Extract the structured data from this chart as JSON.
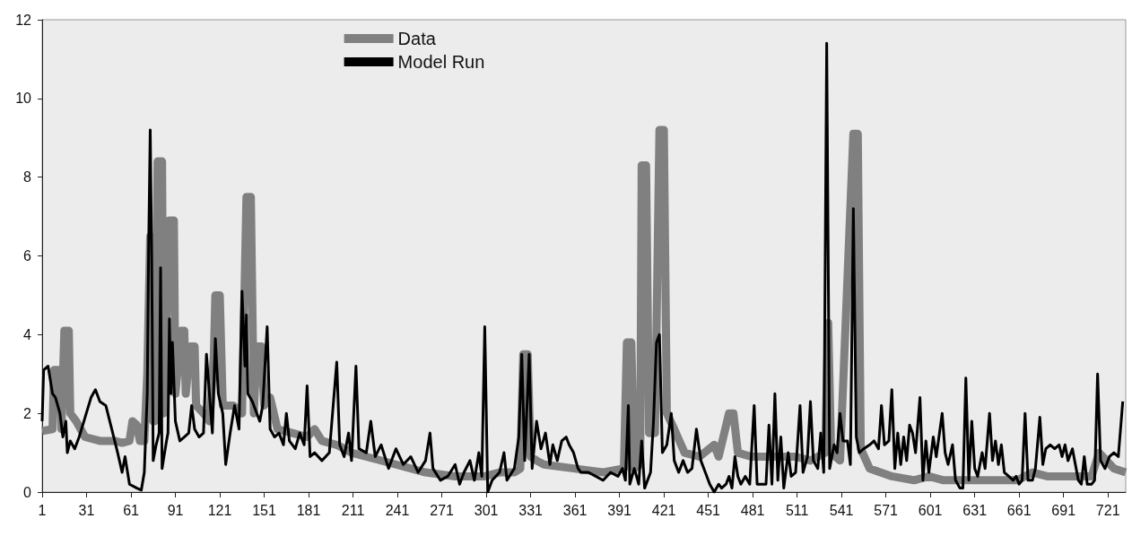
{
  "chart_data": {
    "type": "line",
    "legend": "top left",
    "marker": "none",
    "xlim": [
      1,
      733
    ],
    "xticks": [
      1,
      31,
      61,
      91,
      121,
      151,
      181,
      211,
      241,
      271,
      301,
      331,
      361,
      391,
      421,
      451,
      481,
      511,
      541,
      571,
      601,
      631,
      661,
      691,
      721
    ],
    "ylim": [
      0,
      12
    ],
    "yticks": [
      0,
      2,
      4,
      6,
      8,
      10,
      12
    ],
    "series": [
      {
        "name": "Data",
        "color": "#808080",
        "x": [
          1,
          8,
          9,
          13,
          14,
          16,
          19,
          20,
          24,
          30,
          40,
          50,
          55,
          60,
          62,
          65,
          67,
          70,
          72,
          74,
          76,
          77,
          79,
          82,
          83,
          86,
          87,
          90,
          91,
          95,
          97,
          98,
          101,
          104,
          105,
          110,
          114,
          117,
          118,
          121,
          123,
          130,
          136,
          139,
          142,
          144,
          146,
          149,
          151,
          155,
          160,
          170,
          180,
          185,
          190,
          200,
          210,
          220,
          240,
          260,
          280,
          300,
          310,
          320,
          324,
          326,
          329,
          331,
          335,
          340,
          360,
          380,
          394,
          396,
          399,
          401,
          405,
          406,
          409,
          411,
          415,
          418,
          421,
          423,
          428,
          435,
          445,
          455,
          458,
          465,
          468,
          471,
          480,
          500,
          510,
          520,
          530,
          532,
          534,
          540,
          549,
          552,
          554,
          560,
          575,
          590,
          600,
          610,
          640,
          660,
          670,
          680,
          700,
          710,
          715,
          720,
          725,
          733
        ],
        "values": [
          1.55,
          1.6,
          3.1,
          3.1,
          1.6,
          4.1,
          4.1,
          2.0,
          1.8,
          1.4,
          1.3,
          1.3,
          1.25,
          1.3,
          1.8,
          1.7,
          1.3,
          1.3,
          3.0,
          6.5,
          1.8,
          1.8,
          8.4,
          8.4,
          2.0,
          5.8,
          6.9,
          6.9,
          2.5,
          4.1,
          4.1,
          2.5,
          3.7,
          3.7,
          2.2,
          2.0,
          1.8,
          3.5,
          5.0,
          5.0,
          2.2,
          2.2,
          2.0,
          7.5,
          7.5,
          2.0,
          3.7,
          3.7,
          2.2,
          2.4,
          1.6,
          1.5,
          1.4,
          1.6,
          1.3,
          1.2,
          1.0,
          0.9,
          0.7,
          0.5,
          0.4,
          0.4,
          0.5,
          0.5,
          0.6,
          3.5,
          3.5,
          0.9,
          0.8,
          0.7,
          0.6,
          0.5,
          0.6,
          3.8,
          3.8,
          0.6,
          0.7,
          8.3,
          8.3,
          1.5,
          1.5,
          9.2,
          9.2,
          2.0,
          1.6,
          1.0,
          0.9,
          1.2,
          0.9,
          2.0,
          2.0,
          1.0,
          0.9,
          0.9,
          0.9,
          0.8,
          1.0,
          4.3,
          1.0,
          0.8,
          9.1,
          9.1,
          1.1,
          0.6,
          0.4,
          0.3,
          0.4,
          0.3,
          0.3,
          0.3,
          0.5,
          0.4,
          0.4,
          0.4,
          1.0,
          0.8,
          0.6,
          0.5
        ]
      },
      {
        "name": "Model Run",
        "color": "#000000",
        "x": [
          1,
          2,
          5,
          8,
          10,
          13,
          15,
          17,
          18,
          20,
          23,
          26,
          30,
          34,
          37,
          40,
          44,
          48,
          52,
          55,
          57,
          60,
          65,
          68,
          70,
          72,
          73,
          74,
          75,
          76,
          78,
          80,
          81,
          82,
          85,
          86,
          87,
          88,
          89,
          91,
          94,
          97,
          100,
          102,
          104,
          107,
          110,
          112,
          116,
          118,
          120,
          123,
          125,
          128,
          131,
          134,
          136,
          138,
          139,
          140,
          143,
          148,
          150,
          153,
          155,
          158,
          161,
          164,
          166,
          168,
          172,
          175,
          178,
          180,
          182,
          185,
          190,
          195,
          200,
          202,
          205,
          208,
          210,
          213,
          215,
          220,
          223,
          226,
          230,
          235,
          240,
          245,
          250,
          255,
          260,
          263,
          265,
          270,
          275,
          280,
          283,
          286,
          290,
          293,
          296,
          298,
          300,
          302,
          305,
          310,
          313,
          315,
          320,
          323,
          325,
          327,
          330,
          332,
          335,
          338,
          341,
          344,
          346,
          349,
          352,
          355,
          357,
          360,
          363,
          365,
          370,
          375,
          380,
          385,
          390,
          393,
          395,
          397,
          398,
          401,
          404,
          406,
          408,
          412,
          414,
          416,
          418,
          420,
          423,
          426,
          428,
          431,
          434,
          437,
          440,
          443,
          446,
          449,
          452,
          455,
          458,
          460,
          463,
          465,
          467,
          469,
          471,
          473,
          476,
          479,
          482,
          484,
          487,
          490,
          492,
          494,
          496,
          498,
          500,
          502,
          505,
          507,
          510,
          513,
          515,
          518,
          520,
          522,
          525,
          527,
          529,
          531,
          533,
          536,
          538,
          540,
          542,
          545,
          547,
          549,
          551,
          553,
          556,
          560,
          563,
          566,
          568,
          570,
          573,
          575,
          577,
          579,
          581,
          583,
          585,
          587,
          589,
          591,
          594,
          596,
          598,
          600,
          603,
          605,
          609,
          611,
          613,
          616,
          618,
          621,
          623,
          625,
          627,
          629,
          631,
          633,
          636,
          638,
          641,
          643,
          645,
          647,
          649,
          651,
          654,
          657,
          659,
          661,
          663,
          665,
          667,
          670,
          672,
          675,
          677,
          679,
          682,
          685,
          688,
          690,
          692,
          694,
          697,
          699,
          701,
          703,
          705,
          707,
          710,
          712,
          714,
          716,
          719,
          722,
          725,
          728,
          731
        ],
        "values": [
          1.8,
          3.1,
          3.2,
          2.5,
          2.4,
          2.0,
          1.4,
          1.8,
          1.0,
          1.3,
          1.1,
          1.4,
          1.9,
          2.4,
          2.6,
          2.3,
          2.2,
          1.6,
          1.0,
          0.5,
          0.9,
          0.2,
          0.1,
          0.05,
          0.5,
          2.5,
          6.4,
          9.2,
          6.0,
          0.8,
          1.2,
          1.5,
          5.7,
          0.6,
          1.3,
          1.5,
          4.4,
          2.5,
          3.8,
          1.8,
          1.3,
          1.4,
          1.5,
          2.2,
          1.6,
          1.4,
          1.5,
          3.5,
          1.5,
          3.9,
          2.5,
          2.0,
          0.7,
          1.5,
          2.2,
          1.6,
          5.1,
          3.2,
          4.5,
          2.5,
          2.3,
          1.8,
          2.2,
          4.2,
          1.6,
          1.4,
          1.5,
          1.2,
          2.0,
          1.3,
          1.1,
          1.5,
          1.2,
          2.7,
          0.9,
          1.0,
          0.8,
          1.0,
          3.3,
          1.2,
          0.9,
          1.5,
          0.8,
          3.2,
          1.1,
          1.0,
          1.8,
          0.9,
          1.2,
          0.6,
          1.1,
          0.7,
          0.9,
          0.5,
          0.8,
          1.5,
          0.6,
          0.3,
          0.4,
          0.7,
          0.2,
          0.5,
          0.8,
          0.3,
          1.0,
          0.4,
          4.2,
          0.0,
          0.3,
          0.5,
          1.0,
          0.3,
          0.6,
          1.4,
          3.5,
          0.8,
          3.5,
          0.6,
          1.8,
          1.1,
          1.5,
          0.7,
          1.2,
          0.8,
          1.3,
          1.4,
          1.2,
          1.0,
          0.6,
          0.5,
          0.5,
          0.4,
          0.3,
          0.5,
          0.4,
          0.6,
          0.3,
          2.2,
          0.2,
          0.6,
          0.2,
          1.3,
          0.1,
          0.5,
          1.8,
          3.8,
          4.0,
          1.0,
          1.2,
          2.0,
          0.8,
          0.5,
          0.8,
          0.5,
          0.6,
          1.6,
          0.8,
          0.5,
          0.2,
          0.0,
          0.2,
          0.1,
          0.2,
          0.4,
          0.1,
          0.9,
          0.4,
          0.2,
          0.4,
          0.2,
          2.2,
          0.2,
          0.2,
          0.2,
          1.7,
          0.2,
          2.5,
          0.3,
          1.4,
          0.1,
          1.0,
          0.4,
          0.5,
          2.2,
          0.5,
          0.9,
          2.3,
          0.8,
          0.6,
          1.5,
          0.5,
          11.4,
          0.6,
          1.2,
          1.0,
          2.0,
          1.3,
          1.3,
          0.7,
          7.2,
          1.4,
          1.0,
          1.1,
          1.2,
          1.3,
          1.1,
          2.2,
          1.2,
          1.3,
          2.6,
          0.6,
          1.5,
          0.7,
          1.4,
          0.8,
          1.7,
          1.5,
          1.0,
          2.4,
          0.3,
          1.3,
          0.5,
          1.4,
          0.9,
          2.0,
          1.0,
          0.7,
          1.2,
          0.3,
          0.1,
          0.1,
          2.9,
          0.3,
          1.8,
          0.6,
          0.4,
          1.0,
          0.6,
          2.0,
          0.8,
          1.3,
          0.7,
          1.2,
          0.5,
          0.4,
          0.3,
          0.4,
          0.2,
          0.3,
          2.0,
          0.3,
          0.3,
          0.6,
          1.9,
          0.7,
          1.1,
          1.2,
          1.1,
          1.2,
          0.9,
          1.2,
          0.8,
          1.1,
          0.7,
          0.3,
          0.2,
          0.9,
          0.2,
          0.2,
          0.3,
          3.0,
          0.8,
          0.6,
          0.9,
          1.0,
          0.9,
          2.3
        ]
      }
    ]
  }
}
